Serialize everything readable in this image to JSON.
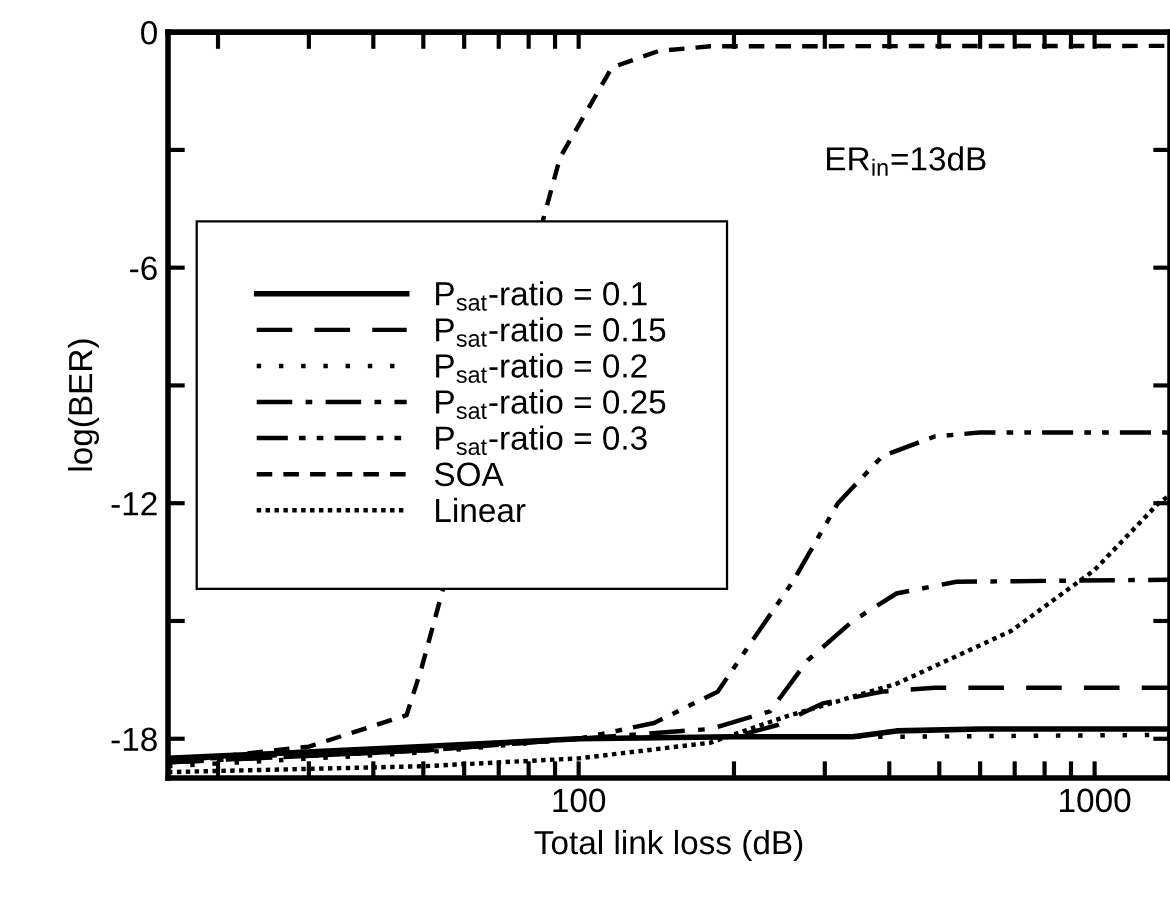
{
  "chart_data": {
    "type": "line",
    "xlabel": "Total link loss (dB)",
    "ylabel": "log(BER)",
    "log": "x",
    "xlim": [
      16,
      1400
    ],
    "ylim": [
      -19,
      0
    ],
    "xticks": [
      {
        "value": 20,
        "label": null
      },
      {
        "value": 30,
        "label": null
      },
      {
        "value": 40,
        "label": null
      },
      {
        "value": 50,
        "label": null
      },
      {
        "value": 60,
        "label": null
      },
      {
        "value": 70,
        "label": null
      },
      {
        "value": 80,
        "label": null
      },
      {
        "value": 90,
        "label": null
      },
      100,
      {
        "value": 200,
        "label": null
      },
      {
        "value": 300,
        "label": null
      },
      {
        "value": 400,
        "label": null
      },
      {
        "value": 500,
        "label": null
      },
      {
        "value": 600,
        "label": null
      },
      {
        "value": 700,
        "label": null
      },
      {
        "value": 800,
        "label": null
      },
      {
        "value": 900,
        "label": null
      },
      1000
    ],
    "yticks": [
      0,
      {
        "value": -3,
        "label": null
      },
      -6,
      {
        "value": -9,
        "label": null
      },
      -12,
      {
        "value": -15,
        "label": null
      },
      -18
    ],
    "grid": false,
    "legend": "left",
    "annotations": [
      "ER$_{in}$=13dB"
    ],
    "series": [
      {
        "name": "P$_{sat}$-ratio = 0.1",
        "color": "#000000",
        "line_style": "solid",
        "x": [
          16,
          50,
          100,
          200,
          340,
          413,
          600,
          1400
        ],
        "values": [
          -18.5,
          -18.2,
          -18.0,
          -17.95,
          -17.95,
          -17.8,
          -17.75,
          -17.75
        ]
      },
      {
        "name": "P$_{sat}$-ratio = 0.15",
        "color": "#000000",
        "line_style": "dashed",
        "x": [
          16,
          50,
          100,
          200,
          243,
          297,
          388,
          490,
          1400
        ],
        "values": [
          -18.6,
          -18.3,
          -18.0,
          -17.95,
          -17.65,
          -17.1,
          -16.8,
          -16.7,
          -16.7
        ]
      },
      {
        "name": "P$_{sat}$-ratio = 0.2",
        "color": "#000000",
        "line_style": "loosely dotted",
        "x": [
          16,
          50,
          100,
          200,
          400,
          1400
        ],
        "values": [
          -18.7,
          -18.35,
          -18.0,
          -17.95,
          -17.95,
          -17.9
        ]
      },
      {
        "name": "P$_{sat}$-ratio = 0.25",
        "color": "#000000",
        "line_style": "dashdot",
        "x": [
          16,
          50,
          100,
          180,
          235,
          278,
          340,
          413,
          540,
          1400
        ],
        "values": [
          -18.6,
          -18.3,
          -18.0,
          -17.75,
          -17.3,
          -16.0,
          -15.0,
          -14.3,
          -14.0,
          -13.95
        ]
      },
      {
        "name": "P$_{sat}$-ratio = 0.3",
        "color": "#000000",
        "line_style": "dashdotdot",
        "x": [
          16,
          50,
          100,
          140,
          186,
          212,
          260,
          318,
          388,
          490,
          598,
          1400
        ],
        "values": [
          -18.55,
          -18.25,
          -18.0,
          -17.6,
          -16.8,
          -15.7,
          -14.0,
          -12.0,
          -10.8,
          -10.3,
          -10.2,
          -10.2
        ]
      },
      {
        "name": "SOA",
        "color": "#000000",
        "line_style": "short dashed",
        "x": [
          16,
          30,
          46.4,
          49.6,
          92,
          116,
          143,
          180,
          1400
        ],
        "values": [
          -18.6,
          -18.2,
          -17.4,
          -16.2,
          -3.2,
          -0.9,
          -0.48,
          -0.36,
          -0.35
        ]
      },
      {
        "name": "Linear",
        "color": "#000000",
        "line_style": "dotted",
        "x": [
          16,
          50,
          100,
          180,
          250,
          413,
          690,
          1000,
          1330,
          1400
        ],
        "values": [
          -18.85,
          -18.7,
          -18.5,
          -18.1,
          -17.45,
          -16.6,
          -15.25,
          -13.7,
          -12.0,
          -11.8
        ]
      }
    ]
  }
}
